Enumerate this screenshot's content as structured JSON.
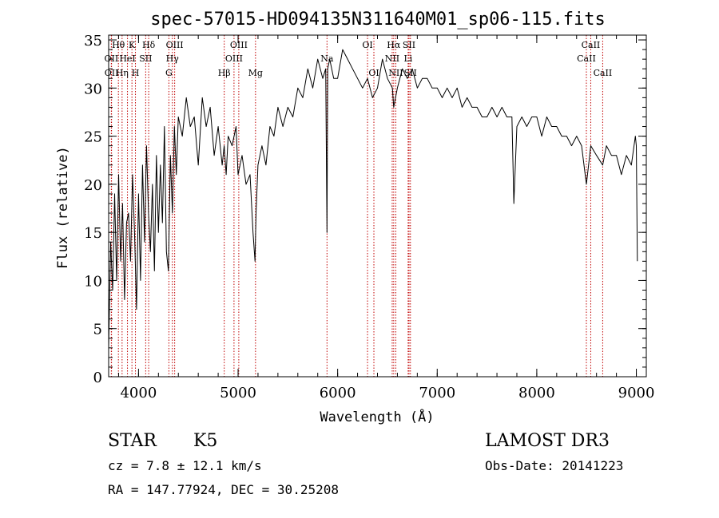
{
  "chart_data": {
    "type": "line",
    "title": "spec-57015-HD094135N311640M01_sp06-115.fits",
    "xlabel": "Wavelength (Å)",
    "ylabel": "Flux (relative)",
    "xlim": [
      3700,
      9100
    ],
    "ylim": [
      0,
      35.5
    ],
    "xticks": [
      4000,
      5000,
      6000,
      7000,
      8000,
      9000
    ],
    "yticks": [
      0,
      5,
      10,
      15,
      20,
      25,
      30,
      35
    ],
    "grid": false,
    "series": [
      {
        "name": "spectrum",
        "x": [
          3700,
          3720,
          3740,
          3760,
          3780,
          3800,
          3820,
          3840,
          3860,
          3880,
          3900,
          3920,
          3940,
          3960,
          3980,
          4000,
          4020,
          4040,
          4060,
          4080,
          4100,
          4120,
          4140,
          4160,
          4180,
          4200,
          4220,
          4240,
          4260,
          4280,
          4300,
          4320,
          4340,
          4360,
          4380,
          4400,
          4440,
          4480,
          4520,
          4560,
          4600,
          4640,
          4680,
          4720,
          4760,
          4800,
          4840,
          4860,
          4880,
          4900,
          4940,
          4980,
          5000,
          5040,
          5080,
          5120,
          5150,
          5170,
          5180,
          5200,
          5240,
          5280,
          5320,
          5360,
          5400,
          5450,
          5500,
          5550,
          5600,
          5650,
          5700,
          5750,
          5800,
          5850,
          5880,
          5893,
          5900,
          5920,
          5960,
          6000,
          6050,
          6100,
          6150,
          6200,
          6250,
          6300,
          6350,
          6400,
          6450,
          6500,
          6550,
          6563,
          6600,
          6650,
          6700,
          6750,
          6800,
          6850,
          6900,
          6950,
          7000,
          7050,
          7100,
          7150,
          7200,
          7250,
          7300,
          7350,
          7400,
          7450,
          7500,
          7550,
          7600,
          7650,
          7700,
          7750,
          7770,
          7800,
          7850,
          7900,
          7950,
          8000,
          8050,
          8100,
          8150,
          8200,
          8250,
          8300,
          8350,
          8400,
          8450,
          8498,
          8542,
          8600,
          8662,
          8700,
          8750,
          8800,
          8850,
          8900,
          8950,
          8990,
          9000,
          9010
        ],
        "values": [
          3,
          14,
          9,
          19,
          10,
          21,
          12,
          18,
          8,
          16,
          17,
          12,
          21,
          15,
          7,
          19,
          10,
          22,
          14,
          24,
          17,
          13,
          20,
          11,
          23,
          15,
          22,
          16,
          26,
          13,
          11,
          23,
          17,
          26,
          21,
          27,
          25,
          29,
          26,
          27,
          22,
          29,
          26,
          28,
          23,
          26,
          22,
          24,
          21,
          25,
          24,
          26,
          21,
          23,
          20,
          21,
          15,
          12,
          17,
          22,
          24,
          22,
          26,
          25,
          28,
          26,
          28,
          27,
          30,
          29,
          32,
          30,
          33,
          31,
          32,
          15,
          32,
          33,
          31,
          31,
          34,
          33,
          32,
          31,
          30,
          31,
          29,
          30,
          33,
          31,
          30,
          28,
          30,
          32,
          31,
          32,
          30,
          31,
          31,
          30,
          30,
          29,
          30,
          29,
          30,
          28,
          29,
          28,
          28,
          27,
          27,
          28,
          27,
          28,
          27,
          27,
          18,
          26,
          27,
          26,
          27,
          27,
          25,
          27,
          26,
          26,
          25,
          25,
          24,
          25,
          24,
          20,
          24,
          23,
          22,
          24,
          23,
          23,
          21,
          23,
          22,
          25,
          24,
          12
        ]
      }
    ],
    "lines": [
      {
        "name": "Hθ",
        "wl": 3798,
        "row": 0
      },
      {
        "name": "OII",
        "wl": 3727,
        "row": 1
      },
      {
        "name": "OII",
        "wl": 3729,
        "row": 2
      },
      {
        "name": "Hη",
        "wl": 3835,
        "row": 2
      },
      {
        "name": "HeI",
        "wl": 3889,
        "row": 1
      },
      {
        "name": "K",
        "wl": 3934,
        "row": 0
      },
      {
        "name": "H",
        "wl": 3969,
        "row": 2
      },
      {
        "name": "SII",
        "wl": 4072,
        "row": 1
      },
      {
        "name": "Hδ",
        "wl": 4102,
        "row": 0
      },
      {
        "name": "OIII",
        "wl": 4363,
        "row": 0
      },
      {
        "name": "Hγ",
        "wl": 4340,
        "row": 1
      },
      {
        "name": "G",
        "wl": 4305,
        "row": 2
      },
      {
        "name": "Hβ",
        "wl": 4861,
        "row": 2
      },
      {
        "name": "OIII",
        "wl": 4959,
        "row": 1
      },
      {
        "name": "OIII",
        "wl": 5007,
        "row": 0
      },
      {
        "name": "Mg",
        "wl": 5175,
        "row": 2
      },
      {
        "name": "Na",
        "wl": 5893,
        "row": 1
      },
      {
        "name": "OI",
        "wl": 6300,
        "row": 0
      },
      {
        "name": "OI",
        "wl": 6364,
        "row": 2
      },
      {
        "name": "Hα",
        "wl": 6563,
        "row": 0
      },
      {
        "name": "NII",
        "wl": 6548,
        "row": 1
      },
      {
        "name": "NII",
        "wl": 6584,
        "row": 2
      },
      {
        "name": "SII",
        "wl": 6717,
        "row": 0
      },
      {
        "name": "Li",
        "wl": 6708,
        "row": 1
      },
      {
        "name": "SII",
        "wl": 6731,
        "row": 2
      },
      {
        "name": "CaII",
        "wl": 8498,
        "row": 1
      },
      {
        "name": "CaII",
        "wl": 8542,
        "row": 0
      },
      {
        "name": "CaII",
        "wl": 8662,
        "row": 2
      }
    ]
  },
  "info": {
    "object_type": "STAR",
    "subclass": "K5",
    "survey": "LAMOST DR3",
    "redshift": "cz = 7.8 ± 12.1 km/s",
    "obs_date": "Obs-Date: 20141223",
    "coords": "RA = 147.77924, DEC =  30.25208"
  }
}
